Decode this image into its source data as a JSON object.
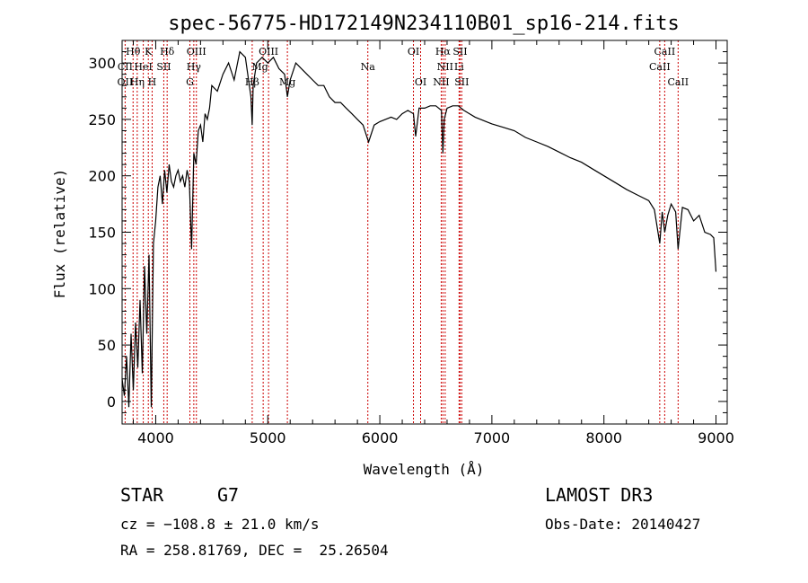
{
  "chart_data": {
    "type": "line",
    "title": "spec-56775-HD172149N234110B01_sp16-214.fits",
    "xlabel": "Wavelength (Å)",
    "ylabel": "Flux (relative)",
    "xlim": [
      3700,
      9100
    ],
    "ylim": [
      -20,
      320
    ],
    "xticks": [
      4000,
      5000,
      6000,
      7000,
      8000,
      9000
    ],
    "yticks": [
      0,
      50,
      100,
      150,
      200,
      250,
      300
    ],
    "grid": false,
    "series": [
      {
        "x": [
          3700,
          3720,
          3740,
          3760,
          3780,
          3800,
          3820,
          3840,
          3860,
          3880,
          3900,
          3920,
          3940,
          3960,
          3980,
          4000,
          4020,
          4040,
          4060,
          4080,
          4100,
          4120,
          4140,
          4160,
          4180,
          4200,
          4220,
          4240,
          4260,
          4280,
          4300,
          4320,
          4340,
          4360,
          4380,
          4400,
          4420,
          4440,
          4460,
          4480,
          4500,
          4550,
          4600,
          4650,
          4700,
          4750,
          4800,
          4850,
          4861,
          4870,
          4900,
          4950,
          5000,
          5050,
          5100,
          5150,
          5175,
          5200,
          5250,
          5300,
          5350,
          5400,
          5450,
          5500,
          5550,
          5600,
          5650,
          5700,
          5750,
          5800,
          5850,
          5893,
          5900,
          5950,
          6000,
          6050,
          6100,
          6150,
          6200,
          6250,
          6300,
          6320,
          6350,
          6400,
          6450,
          6500,
          6550,
          6563,
          6575,
          6600,
          6650,
          6700,
          6750,
          6800,
          6850,
          6900,
          6950,
          7000,
          7100,
          7200,
          7300,
          7400,
          7500,
          7600,
          7700,
          7800,
          7900,
          8000,
          8100,
          8200,
          8300,
          8400,
          8450,
          8498,
          8520,
          8542,
          8570,
          8600,
          8640,
          8662,
          8700,
          8750,
          8800,
          8850,
          8900,
          8950,
          8980,
          9000
        ],
        "y": [
          20,
          5,
          40,
          -5,
          60,
          10,
          70,
          30,
          90,
          25,
          120,
          60,
          130,
          -5,
          140,
          160,
          190,
          200,
          175,
          205,
          185,
          210,
          195,
          190,
          200,
          205,
          195,
          200,
          190,
          205,
          195,
          135,
          220,
          210,
          240,
          245,
          230,
          255,
          250,
          260,
          280,
          275,
          290,
          300,
          285,
          310,
          305,
          270,
          245,
          280,
          300,
          305,
          300,
          305,
          295,
          290,
          270,
          285,
          300,
          295,
          290,
          285,
          280,
          280,
          270,
          265,
          265,
          260,
          255,
          250,
          245,
          232,
          230,
          245,
          248,
          250,
          252,
          250,
          255,
          258,
          255,
          235,
          260,
          260,
          262,
          262,
          258,
          220,
          250,
          260,
          262,
          262,
          258,
          255,
          252,
          250,
          248,
          246,
          243,
          240,
          234,
          230,
          226,
          221,
          216,
          212,
          206,
          200,
          194,
          188,
          183,
          178,
          170,
          140,
          168,
          150,
          165,
          175,
          168,
          135,
          172,
          170,
          160,
          165,
          150,
          148,
          145,
          115
        ]
      }
    ],
    "lines": [
      {
        "name": "CII",
        "x": 3727
      },
      {
        "name": "Hθ",
        "x": 3798
      },
      {
        "name": "Hη",
        "x": 3835
      },
      {
        "name": "HeI",
        "x": 3889
      },
      {
        "name": "K",
        "x": 3934
      },
      {
        "name": "H",
        "x": 3968
      },
      {
        "name": "SII",
        "x": 4072
      },
      {
        "name": "Hδ",
        "x": 4102
      },
      {
        "name": "G",
        "x": 4305
      },
      {
        "name": "Hγ",
        "x": 4340
      },
      {
        "name": "OIII",
        "x": 4363
      },
      {
        "name": "Hβ",
        "x": 4861
      },
      {
        "name": "OIII",
        "x": 4959
      },
      {
        "name": "OIII",
        "x": 5007
      },
      {
        "name": "Mg",
        "x": 5175
      },
      {
        "name": "Na",
        "x": 5893
      },
      {
        "name": "OI",
        "x": 6300
      },
      {
        "name": "OI",
        "x": 6364
      },
      {
        "name": "NII",
        "x": 6548
      },
      {
        "name": "Hα",
        "x": 6563
      },
      {
        "name": "NII",
        "x": 6583
      },
      {
        "name": "Li",
        "x": 6707
      },
      {
        "name": "SII",
        "x": 6716
      },
      {
        "name": "SII",
        "x": 6731
      },
      {
        "name": "CaII",
        "x": 8498
      },
      {
        "name": "CaII",
        "x": 8542
      },
      {
        "name": "CaII",
        "x": 8662
      }
    ],
    "line_labels": [
      {
        "text": "Hθ",
        "x": 3798,
        "row": 1
      },
      {
        "text": "K",
        "x": 3934,
        "row": 1
      },
      {
        "text": "Hδ",
        "x": 4102,
        "row": 1
      },
      {
        "text": "OIII",
        "x": 4363,
        "row": 1
      },
      {
        "text": "OIII",
        "x": 5007,
        "row": 1
      },
      {
        "text": "Na",
        "x": 5893,
        "row": 2
      },
      {
        "text": "OI",
        "x": 6300,
        "row": 1
      },
      {
        "text": "Hα",
        "x": 6563,
        "row": 1
      },
      {
        "text": "SII",
        "x": 6716,
        "row": 1
      },
      {
        "text": "CaII",
        "x": 8542,
        "row": 1
      },
      {
        "text": "CII",
        "x": 3727,
        "row": 2
      },
      {
        "text": "HeI",
        "x": 3889,
        "row": 2
      },
      {
        "text": "SII",
        "x": 4072,
        "row": 2
      },
      {
        "text": "Hγ",
        "x": 4340,
        "row": 2
      },
      {
        "text": "Mg",
        "x": 4930,
        "row": 2
      },
      {
        "text": "NII",
        "x": 6583,
        "row": 2
      },
      {
        "text": "Li",
        "x": 6707,
        "row": 2
      },
      {
        "text": "CaII",
        "x": 8498,
        "row": 2
      },
      {
        "text": "OII",
        "x": 3727,
        "row": 3
      },
      {
        "text": "Hη",
        "x": 3835,
        "row": 3
      },
      {
        "text": "H",
        "x": 3968,
        "row": 3
      },
      {
        "text": "G",
        "x": 4305,
        "row": 3
      },
      {
        "text": "Hβ",
        "x": 4861,
        "row": 3
      },
      {
        "text": "Mg",
        "x": 5175,
        "row": 3
      },
      {
        "text": "OI",
        "x": 6364,
        "row": 3
      },
      {
        "text": "NII",
        "x": 6548,
        "row": 3
      },
      {
        "text": "SII",
        "x": 6731,
        "row": 3
      },
      {
        "text": "CaII",
        "x": 8662,
        "row": 3
      }
    ]
  },
  "info": {
    "object_class": "STAR",
    "subclass": "G7",
    "survey": "LAMOST DR3",
    "cz": "cz = −108.8 ± 21.0 km/s",
    "obs_date": "Obs-Date: 20140427",
    "coords": "RA = 258.81769, DEC =  25.26504"
  }
}
